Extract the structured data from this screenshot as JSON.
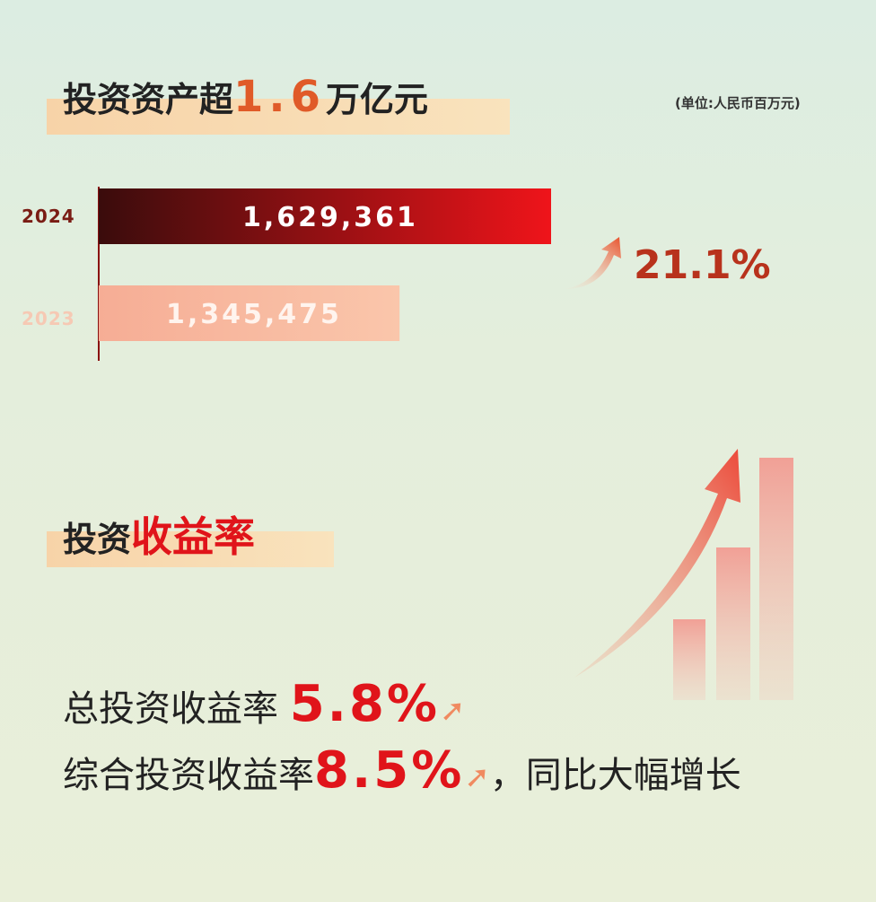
{
  "section1": {
    "title_pre": "投资资产超",
    "title_num": "1.6",
    "title_post": "万亿元",
    "unit": "(单位:人民币百万元)",
    "growth": "21.1%",
    "growth_icon": "arrow-up-icon"
  },
  "chart_data": {
    "type": "bar",
    "orientation": "horizontal",
    "categories": [
      "2024",
      "2023"
    ],
    "values": [
      1629361,
      1345475
    ],
    "data_labels": [
      "1,629,361",
      "1,345,475"
    ],
    "unit": "(单位:人民币百万元)",
    "xlim": [
      782000,
      1629361
    ],
    "colors": {
      "2024": "#e3121a",
      "2023": "#f8b9a0"
    }
  },
  "section2": {
    "title_pre": "投资",
    "title_hl": "收益率",
    "lines": [
      {
        "label": "总投资收益率 ",
        "value": "5.8%",
        "suffix": ""
      },
      {
        "label": "综合投资收益率",
        "value": "8.5%",
        "suffix": "，同比大幅增长"
      }
    ]
  }
}
